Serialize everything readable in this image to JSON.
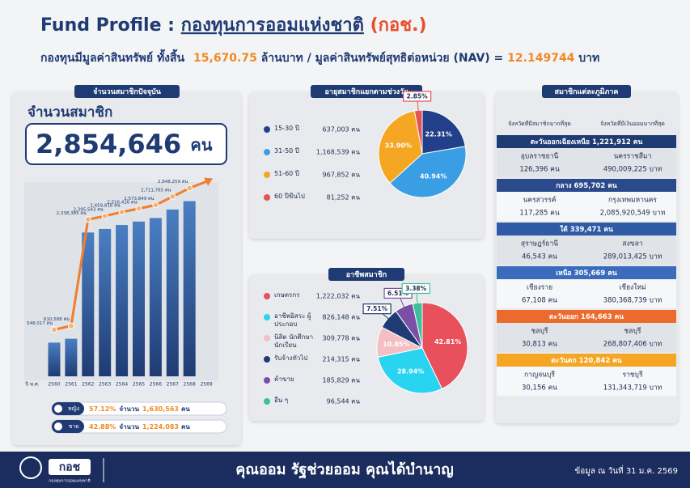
{
  "header": {
    "title_en": "Fund Profile :",
    "title_th": "กองทุนการออมแห่งชาติ",
    "title_abbr": "(กอช.)",
    "subtitle": [
      "กองทุนมีมูลค่าสินทรัพย์ ทั้งสิ้น",
      "15,670.75",
      "ล้านบาท / มูลค่าสินทรัพย์สุทธิต่อหน่วย (NAV) =",
      "12.149744",
      "บาท"
    ]
  },
  "members": {
    "header": "จำนวนสมาชิกปัจจุบัน",
    "label": "จำนวนสมาชิก",
    "total": "2,854,646",
    "unit": "คน",
    "gender": [
      {
        "name": "หญิง",
        "percent": "57.12%",
        "label": "จำนวน",
        "count": "1,630,563",
        "unit": "คน"
      },
      {
        "name": "ชาย",
        "percent": "42.88%",
        "label": "จำนวน",
        "count": "1,224,083",
        "unit": "คน"
      }
    ]
  },
  "chart_data": [
    {
      "type": "bar",
      "x_label": "ปี พ.ศ.",
      "categories": [
        "2560",
        "2561",
        "2562",
        "2563",
        "2564",
        "2565",
        "2566",
        "2567",
        "2568",
        "2569"
      ],
      "values": [
        548017,
        610588,
        2338385,
        2395543,
        2459816,
        2516426,
        2573849,
        2711765,
        2848259,
        null
      ],
      "value_labels": [
        "548,017 คน",
        "610,588 คน",
        "2,338,385 คน",
        "2,395,543 คน",
        "2,459,816 คน",
        "2,516,426 คน",
        "2,573,849 คน",
        "2,711,765 คน",
        "2,848,259 คน",
        null
      ],
      "color": "#2b5597",
      "line_color": "#f07f2d",
      "ylim": [
        0,
        3000000
      ]
    },
    {
      "type": "pie",
      "title": "อายุสมาชิกแยกตามช่วงวัย",
      "categories": [
        "15-30 ปี",
        "31-50 ปี",
        "51-60 ปี",
        "60 ปีขึ้นไป"
      ],
      "count_labels": [
        "637,003 คน",
        "1,168,539 คน",
        "967,852 คน",
        "81,252 คน"
      ],
      "values": [
        22.31,
        40.94,
        33.9,
        2.85
      ],
      "value_labels": [
        "22.31%",
        "40.94%",
        "33.90%",
        "2.85%"
      ],
      "colors": [
        "#22408a",
        "#3a9ee4",
        "#f5a623",
        "#e4525a"
      ]
    },
    {
      "type": "pie",
      "title": "อาชีพสมาชิก",
      "categories": [
        "เกษตรกร",
        "อาชีพอิสระ ผู้ประกอบ",
        "นิสิต นักศึกษา นักเรียน",
        "รับจ้างทั่วไป",
        "ค้าขาย",
        "อื่น ๆ"
      ],
      "count_labels": [
        "1,222,032 คน",
        "826,148 คน",
        "309,778 คน",
        "214,315 คน",
        "185,829 คน",
        "96,544 คน"
      ],
      "values": [
        42.81,
        28.94,
        10.85,
        7.51,
        6.51,
        3.38
      ],
      "value_labels": [
        "42.81%",
        "28.94%",
        "10.85%",
        "7.51%",
        "6.51%",
        "3.38%"
      ],
      "colors": [
        "#e8505b",
        "#28d4f0",
        "#f4bfc3",
        "#1f3b73",
        "#7b4fa6",
        "#3dbf9b"
      ]
    }
  ],
  "regions": {
    "title": "สมาชิกแต่ละภูมิภาค",
    "columns": [
      "จังหวัดที่มีสมาชิกมากที่สุด",
      "จังหวัดที่มีเงินออมมากที่สุด"
    ],
    "items": [
      {
        "name": "ตะวันออกเฉียงเหนือ 1,221,912 คน",
        "color": "#1f3b73",
        "top_members": [
          "อุบลราชธานี",
          "126,396 คน"
        ],
        "top_savings": [
          "นครราชสีมา",
          "490,009,225 บาท"
        ]
      },
      {
        "name": "กลาง 695,702 คน",
        "color": "#2a4a8c",
        "top_members": [
          "นครสวรรค์",
          "117,285 คน"
        ],
        "top_savings": [
          "กรุงเทพมหานคร",
          "2,085,920,549 บาท"
        ]
      },
      {
        "name": "ใต้ 339,471 คน",
        "color": "#2f5aa5",
        "top_members": [
          "สุราษฎร์ธานี",
          "46,543 คน"
        ],
        "top_savings": [
          "สงขลา",
          "289,013,425 บาท"
        ]
      },
      {
        "name": "เหนือ 305,669 คน",
        "color": "#3b6bbd",
        "top_members": [
          "เชียงราย",
          "67,108 คน"
        ],
        "top_savings": [
          "เชียงใหม่",
          "380,368,739 บาท"
        ]
      },
      {
        "name": "ตะวันออก 164,663 คน",
        "color": "#ec6a2c",
        "top_members": [
          "ชลบุรี",
          "30,813 คน"
        ],
        "top_savings": [
          "ชลบุรี",
          "268,807,406 บาท"
        ]
      },
      {
        "name": "ตะวันตก 120,842 คน",
        "color": "#f5a623",
        "top_members": [
          "กาญจนบุรี",
          "30,156 คน"
        ],
        "top_savings": [
          "ราชบุรี",
          "131,343,719 บาท"
        ]
      }
    ]
  },
  "footer": {
    "logo": "กอช",
    "logo_caption": "กองทุนการออมแห่งชาติ",
    "slogan": "คุณออม รัฐช่วยออม คุณได้บำนาญ",
    "date": "ข้อมูล ณ วันที่ 31 ม.ค. 2569"
  }
}
